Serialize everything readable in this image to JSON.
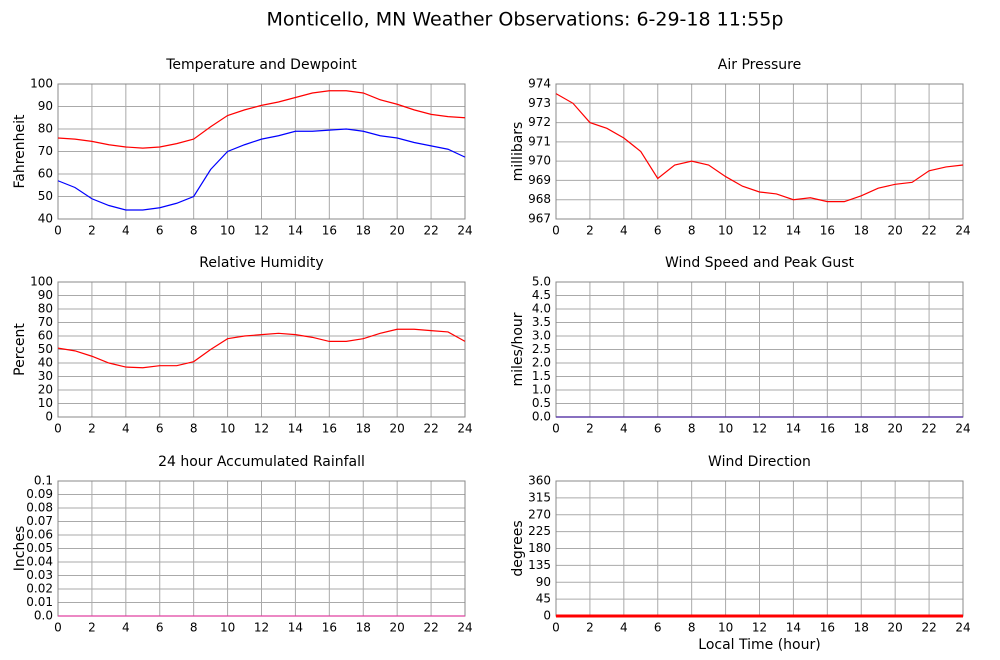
{
  "title": "Monticello, MN Weather Observations: 6-29-18 11:55p",
  "chart_data": [
    {
      "type": "line",
      "title": "Temperature and Dewpoint",
      "y_label": "Fahrenheit",
      "grid": true,
      "x": [
        0,
        1,
        2,
        3,
        4,
        5,
        6,
        7,
        8,
        9,
        10,
        11,
        12,
        13,
        14,
        15,
        16,
        17,
        18,
        19,
        20,
        21,
        22,
        23,
        24
      ],
      "series": [
        {
          "name": "Temperature",
          "color": "#ff0000",
          "values": [
            76,
            75.5,
            74.5,
            73,
            72,
            71.5,
            72,
            73.5,
            75.5,
            81,
            86,
            88.5,
            90.5,
            92,
            94,
            96,
            97,
            97,
            96,
            93,
            91,
            88.5,
            86.5,
            85.5,
            85
          ]
        },
        {
          "name": "Dewpoint",
          "color": "#0000ff",
          "values": [
            57,
            54,
            49,
            46,
            44,
            44,
            45,
            47,
            50,
            62,
            70,
            73,
            75.5,
            77,
            79,
            79,
            79.5,
            80,
            79,
            77,
            76,
            74,
            72.5,
            71,
            67.5
          ]
        }
      ],
      "xlim": [
        0,
        24
      ],
      "xticks": [
        0,
        2,
        4,
        6,
        8,
        10,
        12,
        14,
        16,
        18,
        20,
        22,
        24
      ],
      "ylim": [
        40,
        100
      ],
      "yticks": [
        40,
        50,
        60,
        70,
        80,
        90,
        100
      ]
    },
    {
      "type": "line",
      "title": "Air Pressure",
      "y_label": "millibars",
      "grid": true,
      "x": [
        0,
        1,
        2,
        3,
        4,
        5,
        6,
        7,
        8,
        9,
        10,
        11,
        12,
        13,
        14,
        15,
        16,
        17,
        18,
        19,
        20,
        21,
        22,
        23,
        24
      ],
      "series": [
        {
          "name": "Pressure",
          "color": "#ff0000",
          "values": [
            973.5,
            973,
            972,
            971.7,
            971.2,
            970.5,
            969.1,
            969.8,
            970,
            969.8,
            969.2,
            968.7,
            968.4,
            968.3,
            968,
            968.1,
            967.9,
            967.9,
            968.2,
            968.6,
            968.8,
            968.9,
            969.5,
            969.7,
            969.8
          ]
        }
      ],
      "xlim": [
        0,
        24
      ],
      "xticks": [
        0,
        2,
        4,
        6,
        8,
        10,
        12,
        14,
        16,
        18,
        20,
        22,
        24
      ],
      "ylim": [
        967,
        974
      ],
      "yticks": [
        967,
        968,
        969,
        970,
        971,
        972,
        973,
        974
      ]
    },
    {
      "type": "line",
      "title": "Relative Humidity",
      "y_label": "Percent",
      "grid": true,
      "x": [
        0,
        1,
        2,
        3,
        4,
        5,
        6,
        7,
        8,
        9,
        10,
        11,
        12,
        13,
        14,
        15,
        16,
        17,
        18,
        19,
        20,
        21,
        22,
        23,
        24
      ],
      "series": [
        {
          "name": "Humidity",
          "color": "#ff0000",
          "values": [
            51,
            49,
            45,
            40,
            37,
            36.5,
            38,
            38,
            41,
            50,
            58,
            60,
            61,
            62,
            61,
            59,
            56,
            56,
            58,
            62,
            65,
            65,
            64,
            63,
            56
          ]
        }
      ],
      "xlim": [
        0,
        24
      ],
      "xticks": [
        0,
        2,
        4,
        6,
        8,
        10,
        12,
        14,
        16,
        18,
        20,
        22,
        24
      ],
      "ylim": [
        0,
        100
      ],
      "yticks": [
        0,
        10,
        20,
        30,
        40,
        50,
        60,
        70,
        80,
        90,
        100
      ]
    },
    {
      "type": "line",
      "title": "Wind Speed and Peak Gust",
      "y_label": "miles/hour",
      "grid": true,
      "x": [
        0,
        24
      ],
      "series": [
        {
          "name": "Peak Gust",
          "color": "#ff0000",
          "values": [
            0,
            0
          ]
        },
        {
          "name": "Wind Speed",
          "color": "#4040c0",
          "values": [
            0,
            0
          ]
        }
      ],
      "xlim": [
        0,
        24
      ],
      "xticks": [
        0,
        2,
        4,
        6,
        8,
        10,
        12,
        14,
        16,
        18,
        20,
        22,
        24
      ],
      "ylim": [
        0,
        5
      ],
      "yticks": [
        {
          "value": 0,
          "label": "0.0"
        },
        0.5,
        {
          "value": 1,
          "label": "1.0"
        },
        1.5,
        {
          "value": 2,
          "label": "2.0"
        },
        2.5,
        {
          "value": 3,
          "label": "3.0"
        },
        3.5,
        {
          "value": 4,
          "label": "4.0"
        },
        4.5,
        {
          "value": 5,
          "label": "5.0"
        }
      ]
    },
    {
      "type": "line",
      "title": "24 hour Accumulated Rainfall",
      "y_label": "Inches",
      "grid": true,
      "x": [
        0,
        24
      ],
      "series": [
        {
          "name": "Rainfall",
          "color": "#e040a0",
          "values": [
            0,
            0
          ]
        }
      ],
      "xlim": [
        0,
        24
      ],
      "xticks": [
        0,
        2,
        4,
        6,
        8,
        10,
        12,
        14,
        16,
        18,
        20,
        22,
        24
      ],
      "ylim": [
        0,
        0.1
      ],
      "yticks": [
        {
          "value": 0,
          "label": "0.0"
        },
        0.01,
        0.02,
        0.03,
        0.04,
        0.05,
        0.06,
        0.07,
        0.08,
        0.09,
        0.1
      ]
    },
    {
      "type": "line",
      "title": "Wind Direction",
      "y_label": "degrees",
      "x_label": "Local Time (hour)",
      "grid": true,
      "x": [
        0,
        24
      ],
      "series": [
        {
          "name": "Direction",
          "color": "#ff0000",
          "values": [
            0,
            0
          ]
        }
      ],
      "xlim": [
        0,
        24
      ],
      "xticks": [
        0,
        2,
        4,
        6,
        8,
        10,
        12,
        14,
        16,
        18,
        20,
        22,
        24
      ],
      "ylim": [
        0,
        360
      ],
      "yticks": [
        0,
        45,
        90,
        135,
        180,
        225,
        270,
        315,
        360
      ]
    }
  ]
}
